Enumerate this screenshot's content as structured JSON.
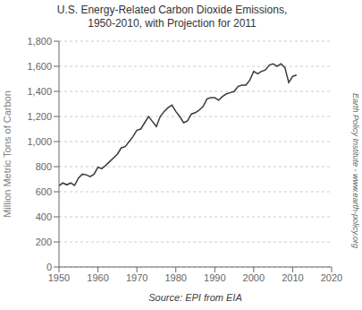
{
  "chart_data": {
    "type": "line",
    "title": "U.S. Energy-Related Carbon Dioxide Emissions,\n1950-2010, with Projection for 2011",
    "xlabel": "Source: EPI from EIA",
    "ylabel": "Million Metric Tons of Carbon",
    "annotations": [
      "Earth Policy Institute - www.earth-policy.org"
    ],
    "x": [
      1950,
      1951,
      1952,
      1953,
      1954,
      1955,
      1956,
      1957,
      1958,
      1959,
      1960,
      1961,
      1962,
      1963,
      1964,
      1965,
      1966,
      1967,
      1968,
      1969,
      1970,
      1971,
      1972,
      1973,
      1974,
      1975,
      1976,
      1977,
      1978,
      1979,
      1980,
      1981,
      1982,
      1983,
      1984,
      1985,
      1986,
      1987,
      1988,
      1989,
      1990,
      1991,
      1992,
      1993,
      1994,
      1995,
      1996,
      1997,
      1998,
      1999,
      2000,
      2001,
      2002,
      2003,
      2004,
      2005,
      2006,
      2007,
      2008,
      2009,
      2010,
      2011
    ],
    "values": [
      648,
      670,
      655,
      670,
      650,
      710,
      740,
      735,
      720,
      740,
      795,
      785,
      810,
      840,
      870,
      900,
      950,
      960,
      1000,
      1040,
      1090,
      1100,
      1150,
      1200,
      1160,
      1120,
      1200,
      1240,
      1270,
      1290,
      1240,
      1200,
      1150,
      1165,
      1220,
      1230,
      1250,
      1280,
      1340,
      1350,
      1350,
      1330,
      1360,
      1380,
      1390,
      1400,
      1440,
      1450,
      1450,
      1490,
      1560,
      1540,
      1560,
      1570,
      1610,
      1620,
      1600,
      1620,
      1590,
      1470,
      1520,
      1530
    ],
    "color": "#3a3a3a",
    "xlim": [
      1950,
      2020
    ],
    "ylim": [
      0,
      1800
    ],
    "xticks": [
      1950,
      1960,
      1970,
      1980,
      1990,
      2000,
      2010,
      2020
    ],
    "yticks": [
      0,
      200,
      400,
      600,
      800,
      {
        "value": 1000,
        "label": "1,000"
      },
      {
        "value": 1200,
        "label": "1,200"
      },
      {
        "value": 1400,
        "label": "1,400"
      },
      {
        "value": 1600,
        "label": "1,600"
      },
      {
        "value": 1800,
        "label": "1,800"
      }
    ],
    "grid": true
  }
}
